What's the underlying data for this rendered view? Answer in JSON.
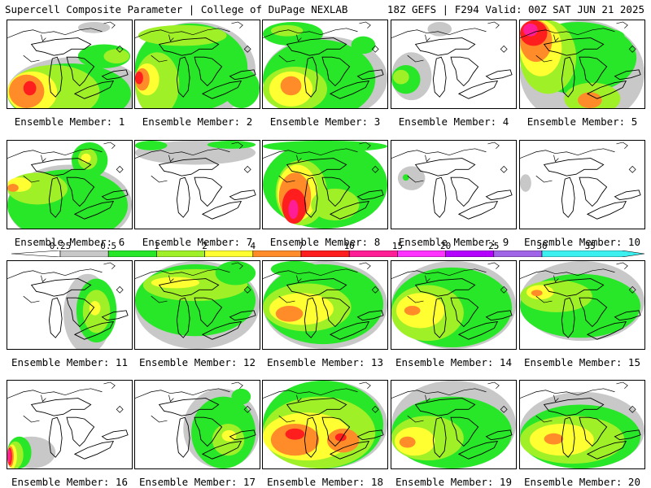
{
  "header": {
    "left": "Supercell Composite Parameter | College of DuPage NEXLAB",
    "right": "18Z GEFS | F294 Valid: 00Z SAT JUN 21 2025"
  },
  "legend": {
    "labels": [
      "0.25",
      "0.5",
      "1",
      "2",
      "4",
      "7",
      "10",
      "15",
      "20",
      "25",
      "30",
      "35"
    ],
    "colors": [
      "#ffffff",
      "#c8c8c8",
      "#28e628",
      "#a0f028",
      "#ffff32",
      "#ff8c28",
      "#ff1e1e",
      "#ff1e96",
      "#ff32ff",
      "#b400ff",
      "#a064e6",
      "#3cf0f0"
    ]
  },
  "colors": {
    "gray": "#c8c8c8",
    "green": "#28e628",
    "lime": "#a0f028",
    "yellow": "#ffff32",
    "orange": "#ff8c28",
    "red": "#ff1e1e",
    "magenta": "#ff1e96"
  },
  "members": [
    {
      "label": "Ensemble Member: 1",
      "blobs": [
        [
          "gray",
          0,
          46,
          170,
          86
        ],
        [
          "green",
          0,
          54,
          154,
          76
        ],
        [
          "lime",
          0,
          56,
          115,
          68
        ],
        [
          "yellow",
          0,
          64,
          62,
          52
        ],
        [
          "orange",
          2,
          68,
          44,
          42
        ],
        [
          "red",
          20,
          76,
          16,
          18
        ],
        [
          "green",
          88,
          30,
          65,
          30
        ],
        [
          "lime",
          120,
          36,
          32,
          18
        ],
        [
          "gray",
          88,
          2,
          40,
          14
        ]
      ]
    },
    {
      "label": "Ensemble Member: 2",
      "blobs": [
        [
          "gray",
          0,
          2,
          150,
          120
        ],
        [
          "green",
          0,
          4,
          140,
          110
        ],
        [
          "lime",
          4,
          6,
          110,
          26
        ],
        [
          "lime",
          0,
          40,
          55,
          80
        ],
        [
          "yellow",
          0,
          54,
          30,
          40
        ],
        [
          "orange",
          0,
          60,
          18,
          28
        ],
        [
          "red",
          0,
          64,
          10,
          16
        ],
        [
          "green",
          110,
          60,
          45,
          50
        ]
      ]
    },
    {
      "label": "Ensemble Member: 3",
      "blobs": [
        [
          "gray",
          0,
          20,
          155,
          105
        ],
        [
          "green",
          0,
          24,
          140,
          100
        ],
        [
          "lime",
          0,
          58,
          80,
          56
        ],
        [
          "yellow",
          8,
          64,
          54,
          44
        ],
        [
          "orange",
          22,
          70,
          26,
          24
        ],
        [
          "green",
          0,
          2,
          75,
          30
        ],
        [
          "lime",
          10,
          6,
          40,
          14
        ],
        [
          "green",
          110,
          20,
          30,
          22
        ]
      ]
    },
    {
      "label": "Ensemble Member: 4",
      "blobs": [
        [
          "gray",
          0,
          40,
          50,
          60
        ],
        [
          "green",
          0,
          56,
          36,
          36
        ],
        [
          "lime",
          2,
          62,
          20,
          18
        ],
        [
          "gray",
          45,
          2,
          30,
          18
        ]
      ]
    },
    {
      "label": "Ensemble Member: 5",
      "blobs": [
        [
          "gray",
          0,
          0,
          155,
          132
        ],
        [
          "green",
          0,
          2,
          145,
          90
        ],
        [
          "lime",
          0,
          0,
          70,
          92
        ],
        [
          "yellow",
          0,
          0,
          52,
          70
        ],
        [
          "orange",
          0,
          0,
          40,
          52
        ],
        [
          "red",
          0,
          0,
          34,
          32
        ],
        [
          "magenta",
          4,
          4,
          18,
          16
        ],
        [
          "green",
          70,
          10,
          60,
          18
        ],
        [
          "lime",
          55,
          78,
          70,
          40
        ],
        [
          "orange",
          72,
          90,
          30,
          20
        ]
      ]
    },
    {
      "label": "Ensemble Member: 6",
      "blobs": [
        [
          "gray",
          0,
          30,
          155,
          100
        ],
        [
          "green",
          0,
          36,
          150,
          90
        ],
        [
          "lime",
          0,
          40,
          75,
          40
        ],
        [
          "yellow",
          0,
          46,
          30,
          18
        ],
        [
          "green",
          80,
          2,
          45,
          45
        ],
        [
          "lime",
          88,
          10,
          24,
          26
        ],
        [
          "yellow",
          92,
          16,
          12,
          12
        ],
        [
          "orange",
          0,
          54,
          14,
          10
        ]
      ]
    },
    {
      "label": "Ensemble Member: 7",
      "blobs": [
        [
          "gray",
          0,
          0,
          150,
          30
        ],
        [
          "green",
          0,
          0,
          40,
          12
        ],
        [
          "green",
          90,
          0,
          60,
          10
        ]
      ]
    },
    {
      "label": "Ensemble Member: 8",
      "blobs": [
        [
          "gray",
          0,
          0,
          155,
          110
        ],
        [
          "green",
          0,
          0,
          155,
          110
        ],
        [
          "lime",
          16,
          24,
          64,
          82
        ],
        [
          "yellow",
          18,
          30,
          50,
          70
        ],
        [
          "orange",
          20,
          40,
          40,
          60
        ],
        [
          "red",
          24,
          60,
          30,
          44
        ],
        [
          "magenta",
          32,
          74,
          12,
          24
        ],
        [
          "green",
          0,
          0,
          155,
          14
        ],
        [
          "lime",
          60,
          60,
          60,
          40
        ]
      ]
    },
    {
      "label": "Ensemble Member: 9",
      "blobs": [
        [
          "gray",
          8,
          32,
          34,
          30
        ],
        [
          "green",
          14,
          42,
          8,
          8
        ]
      ]
    },
    {
      "label": "Ensemble Member: 10",
      "blobs": [
        [
          "gray",
          0,
          42,
          14,
          22
        ]
      ]
    },
    {
      "label": "Ensemble Member: 11",
      "blobs": [
        [
          "gray",
          70,
          16,
          60,
          100
        ],
        [
          "green",
          86,
          22,
          50,
          80
        ],
        [
          "lime",
          94,
          36,
          34,
          54
        ],
        [
          "yellow",
          102,
          50,
          14,
          18
        ]
      ]
    },
    {
      "label": "Ensemble Member: 12",
      "blobs": [
        [
          "gray",
          0,
          0,
          155,
          110
        ],
        [
          "green",
          0,
          4,
          150,
          90
        ],
        [
          "lime",
          10,
          10,
          130,
          40
        ],
        [
          "yellow",
          20,
          20,
          60,
          14
        ],
        [
          "green",
          100,
          0,
          50,
          30
        ]
      ]
    },
    {
      "label": "Ensemble Member: 13",
      "blobs": [
        [
          "gray",
          0,
          0,
          155,
          110
        ],
        [
          "green",
          0,
          4,
          150,
          100
        ],
        [
          "lime",
          0,
          28,
          110,
          60
        ],
        [
          "yellow",
          8,
          40,
          80,
          40
        ],
        [
          "orange",
          16,
          56,
          34,
          20
        ],
        [
          "green",
          10,
          0,
          60,
          20
        ]
      ]
    },
    {
      "label": "Ensemble Member: 14",
      "blobs": [
        [
          "gray",
          0,
          0,
          155,
          110
        ],
        [
          "green",
          0,
          8,
          150,
          100
        ],
        [
          "lime",
          0,
          30,
          90,
          70
        ],
        [
          "yellow",
          6,
          40,
          60,
          44
        ],
        [
          "orange",
          16,
          56,
          20,
          12
        ]
      ]
    },
    {
      "label": "Ensemble Member: 15",
      "blobs": [
        [
          "gray",
          0,
          0,
          155,
          100
        ],
        [
          "green",
          0,
          16,
          150,
          80
        ],
        [
          "lime",
          0,
          24,
          90,
          40
        ],
        [
          "yellow",
          8,
          30,
          34,
          18
        ],
        [
          "orange",
          14,
          36,
          14,
          8
        ]
      ]
    },
    {
      "label": "Ensemble Member: 16",
      "blobs": [
        [
          "gray",
          0,
          70,
          60,
          40
        ],
        [
          "green",
          0,
          70,
          30,
          40
        ],
        [
          "lime",
          0,
          76,
          20,
          34
        ],
        [
          "yellow",
          0,
          80,
          12,
          30
        ],
        [
          "orange",
          0,
          82,
          8,
          26
        ],
        [
          "red",
          0,
          84,
          6,
          22
        ],
        [
          "magenta",
          0,
          86,
          4,
          16
        ]
      ]
    },
    {
      "label": "Ensemble Member: 17",
      "blobs": [
        [
          "gray",
          60,
          10,
          95,
          100
        ],
        [
          "green",
          70,
          20,
          80,
          90
        ],
        [
          "lime",
          96,
          54,
          40,
          40
        ],
        [
          "yellow",
          108,
          62,
          18,
          14
        ],
        [
          "green",
          120,
          10,
          24,
          20
        ]
      ]
    },
    {
      "label": "Ensemble Member: 18",
      "blobs": [
        [
          "gray",
          0,
          0,
          155,
          110
        ],
        [
          "green",
          0,
          0,
          150,
          110
        ],
        [
          "lime",
          0,
          20,
          140,
          90
        ],
        [
          "yellow",
          0,
          40,
          110,
          60
        ],
        [
          "orange",
          10,
          54,
          60,
          40
        ],
        [
          "orange",
          80,
          60,
          40,
          30
        ],
        [
          "red",
          28,
          60,
          24,
          14
        ],
        [
          "red",
          90,
          66,
          14,
          10
        ]
      ]
    },
    {
      "label": "Ensemble Member: 19",
      "blobs": [
        [
          "gray",
          0,
          0,
          155,
          110
        ],
        [
          "green",
          0,
          20,
          150,
          90
        ],
        [
          "lime",
          0,
          44,
          90,
          56
        ],
        [
          "yellow",
          4,
          58,
          50,
          36
        ],
        [
          "orange",
          10,
          70,
          20,
          14
        ]
      ]
    },
    {
      "label": "Ensemble Member: 20",
      "blobs": [
        [
          "gray",
          0,
          14,
          155,
          96
        ],
        [
          "green",
          0,
          30,
          150,
          80
        ],
        [
          "lime",
          0,
          44,
          130,
          60
        ],
        [
          "yellow",
          12,
          54,
          80,
          40
        ],
        [
          "orange",
          30,
          66,
          24,
          14
        ]
      ]
    }
  ]
}
